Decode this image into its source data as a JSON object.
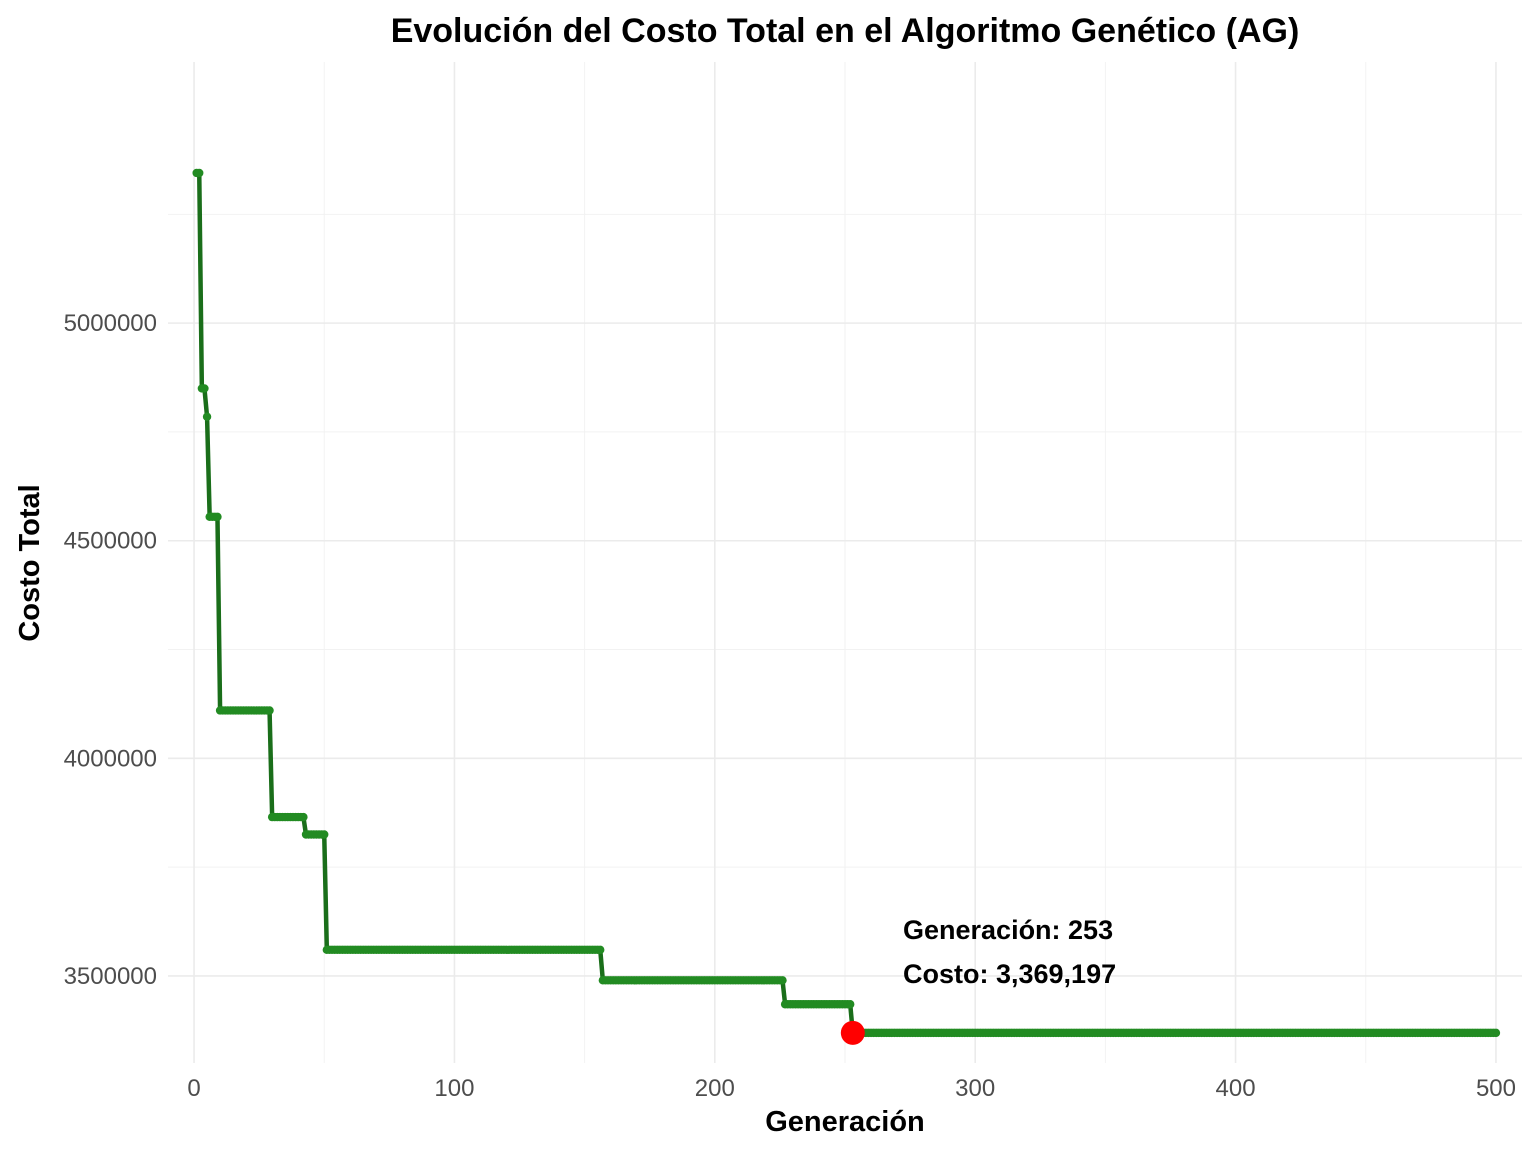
{
  "chart_data": {
    "type": "line",
    "title": "Evolución del Costo Total en el Algoritmo Genético (AG)",
    "xlabel": "Generación",
    "ylabel": "Costo Total",
    "xlim": [
      -10,
      510
    ],
    "ylim": [
      3300000,
      5600000
    ],
    "x_ticks": [
      0,
      100,
      200,
      300,
      400,
      500
    ],
    "x_tick_labels": [
      "0",
      "100",
      "200",
      "300",
      "400",
      "500"
    ],
    "y_ticks": [
      3500000,
      4000000,
      4500000,
      5000000
    ],
    "y_tick_labels": [
      "3500000",
      "4000000",
      "4500000",
      "5000000"
    ],
    "grid": true,
    "legend": "none",
    "series": [
      {
        "color": "#228B22",
        "line_color": "#1a6e1a",
        "steps": [
          {
            "from": 1,
            "to": 2,
            "y": 5345000
          },
          {
            "from": 3,
            "to": 4,
            "y": 4850000
          },
          {
            "from": 5,
            "to": 5,
            "y": 4785000
          },
          {
            "from": 6,
            "to": 9,
            "y": 4555000
          },
          {
            "from": 10,
            "to": 29,
            "y": 4110000
          },
          {
            "from": 30,
            "to": 42,
            "y": 3865000
          },
          {
            "from": 43,
            "to": 50,
            "y": 3825000
          },
          {
            "from": 51,
            "to": 156,
            "y": 3560000
          },
          {
            "from": 157,
            "to": 226,
            "y": 3490000
          },
          {
            "from": 227,
            "to": 252,
            "y": 3435000
          },
          {
            "from": 253,
            "to": 500,
            "y": 3369197
          }
        ]
      }
    ],
    "highlight": {
      "x": 253,
      "y": 3369197,
      "color": "#ff0000",
      "label_line1": "Generación: 253",
      "label_line2": "Costo: 3,369,197"
    }
  }
}
